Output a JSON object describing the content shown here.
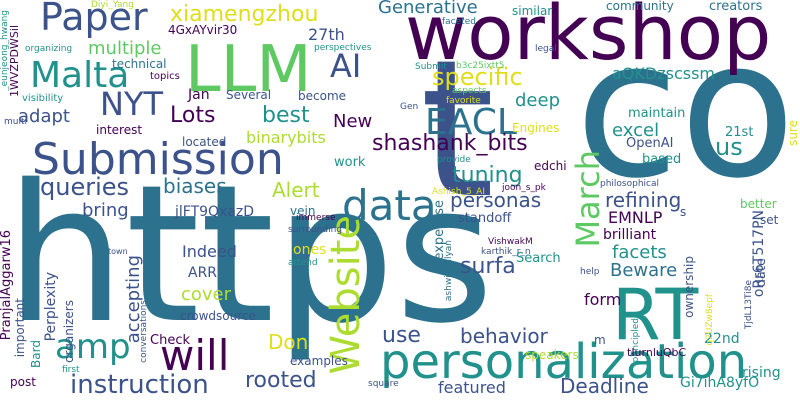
{
  "palette": {
    "purple": "#440154",
    "indigo": "#3b528b",
    "teal": "#21918c",
    "teal_dark": "#2c728e",
    "green": "#5ec962",
    "lime": "#addc30",
    "yellow": "#e0de1a"
  },
  "words": [
    "https",
    "co",
    "t",
    "workshop",
    "RT",
    "LLM",
    "personalization",
    "Submission",
    "Website",
    "data",
    "will",
    "Paper",
    "Malta",
    "March",
    "EACL",
    "amp",
    "NYT",
    "AI",
    "instruction",
    "queries",
    "specific",
    "shashank_bits",
    "tuning",
    "refining",
    "xiamengzhou",
    "Alert",
    "personas",
    "Lots",
    "best",
    "Generative",
    "us",
    "biases",
    "rooted",
    "behavior",
    "use",
    "Deadline",
    "featured",
    "surfa",
    "facets",
    "Beware",
    "deep",
    "excel",
    "aQKDzscssm",
    "multiple",
    "adapt",
    "New",
    "Don",
    "27th",
    "Indeed",
    "cover",
    "accepting",
    "bring",
    "EMNLP",
    "form",
    "binarybits",
    "ARR",
    "maintain",
    "21st",
    "OpenAI",
    "based",
    "jlFT9QxazD",
    "crowdsource",
    "Jan",
    "Several",
    "become",
    "located",
    "Engines",
    "community",
    "creators",
    "similar",
    "4GxAYvir30",
    "technical",
    "topics",
    "perspectives",
    "legal",
    "visibility",
    "interest",
    "work",
    "vein",
    "standoff",
    "Search",
    "expertise",
    "speakers",
    "rising",
    "22nd",
    "ownership",
    "Gi7ihA8yfO",
    "oRr6T517PN",
    "Perplexity",
    "organizers",
    "important",
    "PranjalAggarw16",
    "Bard",
    "Check",
    "conversations",
    "examples",
    "post",
    "first",
    "square",
    "town",
    "attend",
    "ones",
    "help",
    "principled",
    "date",
    "set",
    "better",
    "sure",
    "brilliant",
    "philosophical",
    "edchi",
    "provide",
    "Gen",
    "aspects",
    "favorite",
    "Submit",
    "faceted",
    "organizing",
    "Diyi_Yang",
    "1WVZPDWSil",
    "_eunjeong_hwang",
    "Ashish_5_AI",
    "joon_s_pk",
    "ashwinkalyan",
    "VishwakM",
    "karthik_r_n",
    "surrounding",
    "immerse",
    "b3c25ixtt5",
    "tIurnluQbC",
    "TjdL13Ti8e",
    "m",
    "s",
    "multi",
    "q2UZw8epf"
  ]
}
